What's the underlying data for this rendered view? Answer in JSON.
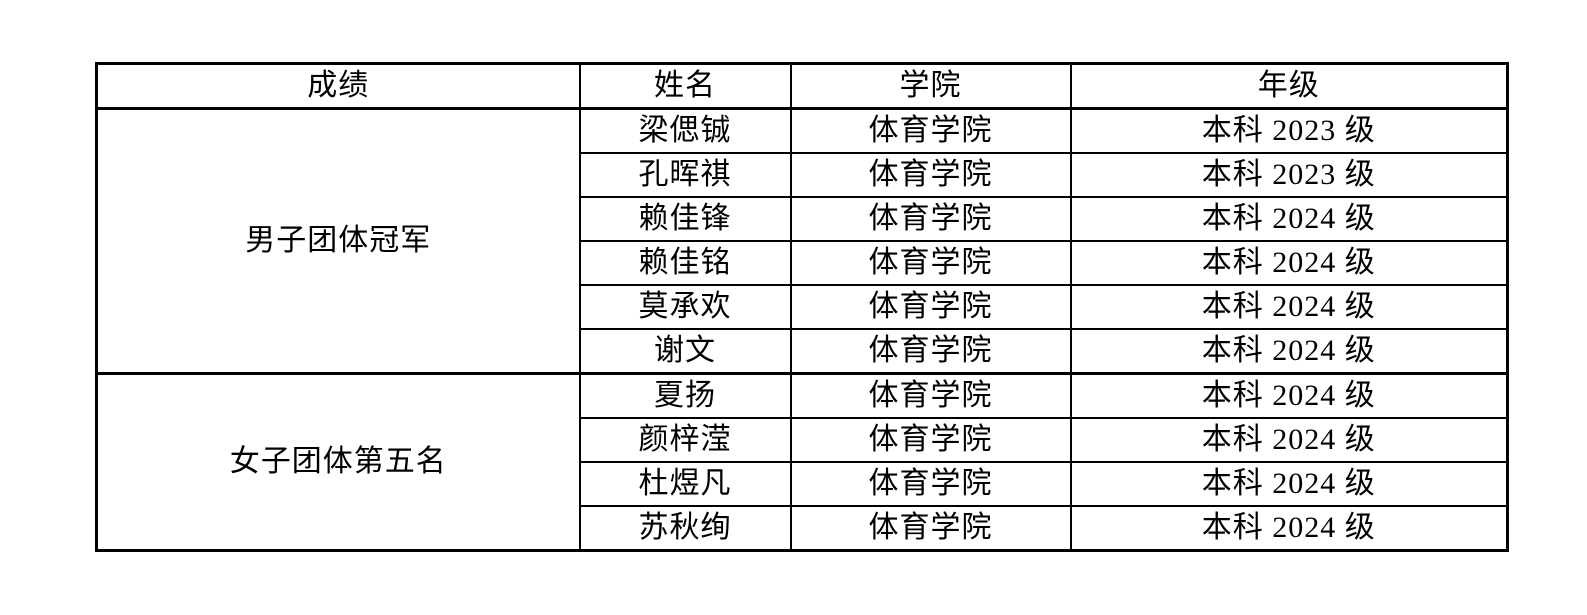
{
  "colors": {
    "background": "#ffffff",
    "border": "#000000",
    "text": "#000000"
  },
  "table": {
    "columns": [
      {
        "key": "score",
        "label": "成绩"
      },
      {
        "key": "name",
        "label": "姓名"
      },
      {
        "key": "college",
        "label": "学院"
      },
      {
        "key": "grade",
        "label": "年级"
      }
    ],
    "groups": [
      {
        "score": "男子团体冠军",
        "members": [
          {
            "name": "梁偲铖",
            "college": "体育学院",
            "grade": "本科 2023 级"
          },
          {
            "name": "孔晖祺",
            "college": "体育学院",
            "grade": "本科 2023 级"
          },
          {
            "name": "赖佳锋",
            "college": "体育学院",
            "grade": "本科 2024 级"
          },
          {
            "name": "赖佳铭",
            "college": "体育学院",
            "grade": "本科 2024 级"
          },
          {
            "name": "莫承欢",
            "college": "体育学院",
            "grade": "本科 2024 级"
          },
          {
            "name": "谢文",
            "college": "体育学院",
            "grade": "本科 2024 级"
          }
        ]
      },
      {
        "score": "女子团体第五名",
        "members": [
          {
            "name": "夏扬",
            "college": "体育学院",
            "grade": "本科 2024 级"
          },
          {
            "name": "颜梓滢",
            "college": "体育学院",
            "grade": "本科 2024 级"
          },
          {
            "name": "杜煜凡",
            "college": "体育学院",
            "grade": "本科 2024 级"
          },
          {
            "name": "苏秋绚",
            "college": "体育学院",
            "grade": "本科 2024 级"
          }
        ]
      }
    ]
  }
}
